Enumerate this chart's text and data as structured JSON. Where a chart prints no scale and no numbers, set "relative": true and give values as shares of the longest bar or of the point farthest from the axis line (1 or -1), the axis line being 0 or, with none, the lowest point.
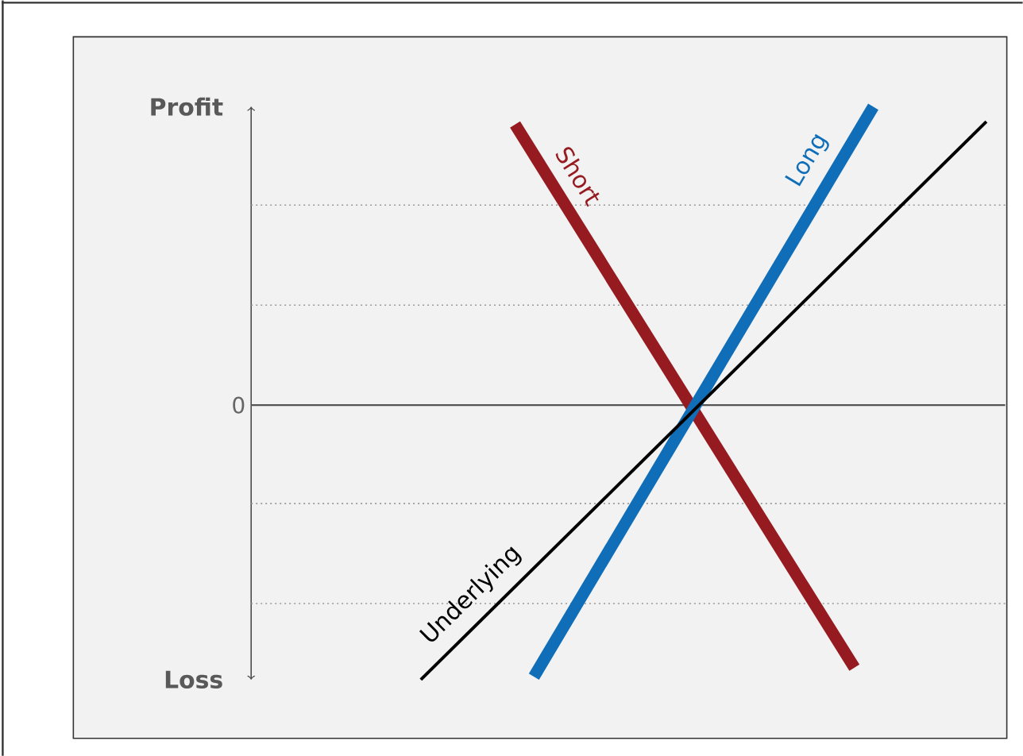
{
  "chart_data": {
    "type": "line",
    "relative": true,
    "categories": [
      null,
      null,
      null,
      null,
      null,
      null,
      null,
      null,
      null,
      null,
      null,
      null,
      null,
      null,
      null,
      null,
      null,
      null,
      null,
      null,
      null,
      null,
      null,
      null,
      null,
      null,
      null,
      null,
      null,
      null,
      null,
      null,
      null,
      null,
      null,
      null,
      null,
      null,
      null,
      null,
      null
    ],
    "series": [
      {
        "name": "Short",
        "color": "#961b20",
        "values": [
          null,
          null,
          null,
          null,
          null,
          null,
          null,
          null,
          null,
          null,
          null,
          null,
          null,
          null,
          0.94,
          null,
          null,
          null,
          null,
          null,
          null,
          null,
          null,
          null,
          null,
          null,
          null,
          null,
          null,
          null,
          null,
          null,
          -0.88,
          null,
          null,
          null,
          null,
          null,
          null,
          null,
          null
        ]
      },
      {
        "name": "Long",
        "color": "#106eb8",
        "values": [
          null,
          null,
          null,
          null,
          null,
          null,
          null,
          null,
          null,
          null,
          null,
          null,
          null,
          null,
          null,
          -0.91,
          null,
          null,
          null,
          null,
          null,
          null,
          null,
          null,
          null,
          null,
          null,
          null,
          null,
          null,
          null,
          null,
          null,
          1,
          null,
          null,
          null,
          null,
          null,
          null,
          null
        ]
      },
      {
        "name": "Underlying",
        "color": "#000000",
        "values": [
          null,
          null,
          null,
          null,
          null,
          null,
          null,
          null,
          null,
          -0.92,
          null,
          null,
          null,
          null,
          null,
          null,
          null,
          null,
          null,
          null,
          null,
          null,
          null,
          null,
          null,
          null,
          null,
          null,
          null,
          null,
          null,
          null,
          null,
          null,
          null,
          null,
          null,
          null,
          null,
          0.95,
          null
        ]
      }
    ],
    "ref_lines": [
      {
        "axis": "y",
        "value": 0,
        "label": "0",
        "color": "#555555",
        "line_style": "solid"
      },
      {
        "axis": "y",
        "value": 0.67,
        "color": "#999999",
        "line_style": "dotted"
      },
      {
        "axis": "y",
        "value": 0.335,
        "color": "#999999",
        "line_style": "dotted"
      },
      {
        "axis": "y",
        "value": -0.33,
        "color": "#999999",
        "line_style": "dotted"
      },
      {
        "axis": "y",
        "value": -0.665,
        "color": "#999999",
        "line_style": "dotted"
      }
    ],
    "annotations": [
      "Profit",
      "Loss"
    ]
  }
}
